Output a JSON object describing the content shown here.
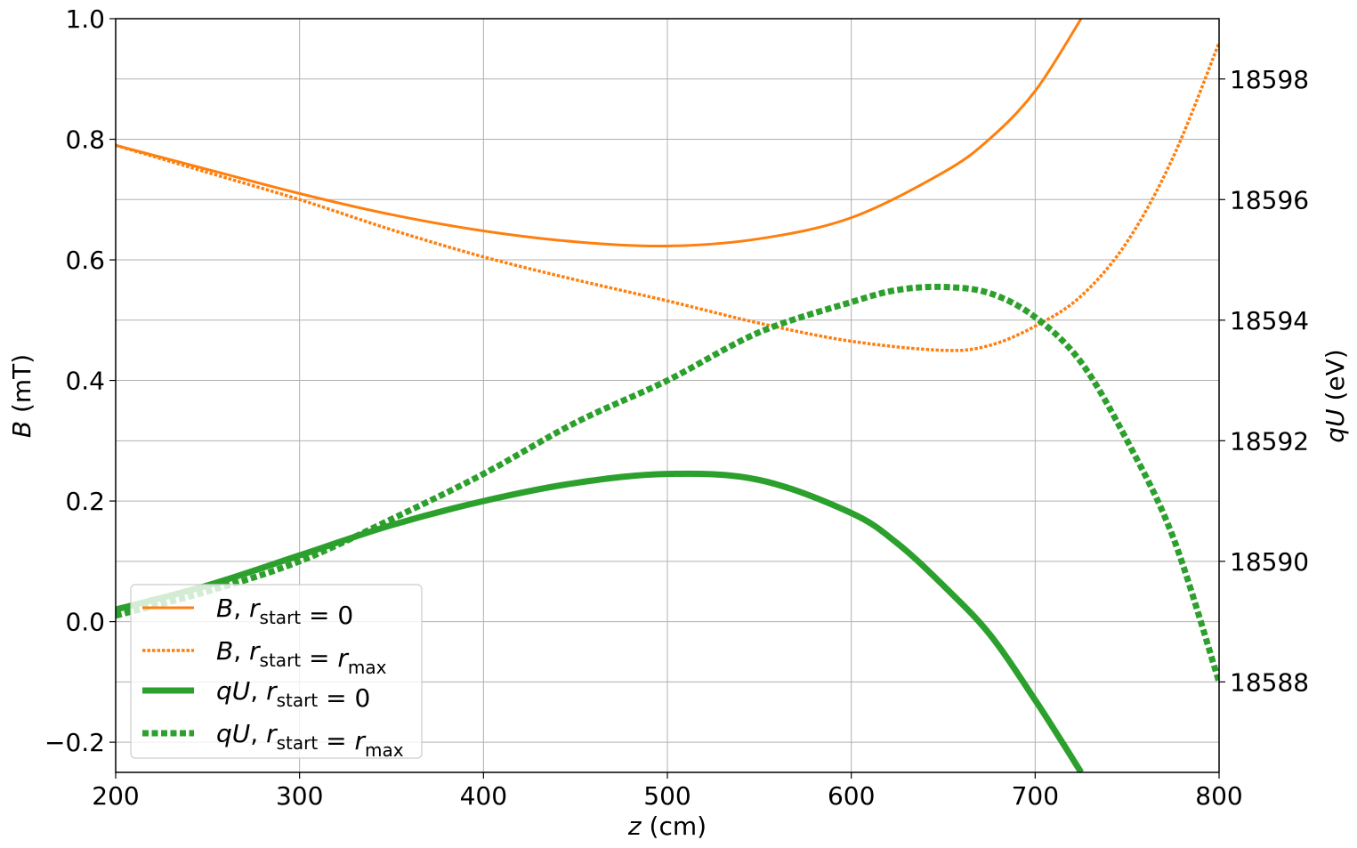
{
  "chart_data": {
    "type": "line",
    "xlabel": {
      "var": "z",
      "unit": "(cm)"
    },
    "ylabel_left": {
      "var": "B",
      "unit": "(mT)"
    },
    "ylabel_right": {
      "var": "qU",
      "unit": "(eV)"
    },
    "xlim": [
      200,
      800
    ],
    "ylim_left": [
      -0.25,
      1.0
    ],
    "ylim_right": [
      18586.5,
      18599.0
    ],
    "xticks": [
      "200",
      "300",
      "400",
      "500",
      "600",
      "700",
      "800"
    ],
    "yticks_left": [
      "−0.2",
      "0.0",
      "0.2",
      "0.4",
      "0.6",
      "0.8",
      "1.0"
    ],
    "yticks_right": [
      "18588",
      "18590",
      "18592",
      "18594",
      "18596",
      "18598"
    ],
    "grid": true,
    "legend_position": "lower-left",
    "colors": {
      "orange": "#ff7f0e",
      "green": "#2ca02c"
    },
    "series": [
      {
        "legend": {
          "var": "B",
          "sub": "start",
          "rhs": "0",
          "rhs_sub": ""
        },
        "axis": "left",
        "color": "#ff7f0e",
        "style": "solid",
        "width": 3,
        "x": [
          200,
          250,
          300,
          350,
          400,
          450,
          500,
          550,
          600,
          650,
          675,
          700,
          725
        ],
        "y": [
          0.79,
          0.75,
          0.71,
          0.675,
          0.648,
          0.63,
          0.623,
          0.635,
          0.67,
          0.745,
          0.8,
          0.88,
          1.0
        ]
      },
      {
        "legend": {
          "var": "B",
          "sub": "start",
          "rhs": "r",
          "rhs_sub": "max"
        },
        "axis": "left",
        "color": "#ff7f0e",
        "style": "dotted",
        "width": 3.5,
        "x": [
          200,
          250,
          300,
          350,
          400,
          450,
          500,
          550,
          600,
          650,
          675,
          700,
          725,
          750,
          775,
          800
        ],
        "y": [
          0.79,
          0.745,
          0.7,
          0.65,
          0.605,
          0.567,
          0.532,
          0.495,
          0.465,
          0.45,
          0.458,
          0.49,
          0.54,
          0.63,
          0.77,
          0.96
        ]
      },
      {
        "legend": {
          "var": "qU",
          "sub": "start",
          "rhs": "0",
          "rhs_sub": ""
        },
        "axis": "right",
        "color": "#2ca02c",
        "style": "solid",
        "width": 7,
        "x": [
          200,
          250,
          300,
          350,
          400,
          450,
          500,
          550,
          600,
          625,
          650,
          675,
          700,
          725
        ],
        "y": [
          18589.2,
          18589.6,
          18590.1,
          18590.6,
          18591.0,
          18591.3,
          18591.45,
          18591.35,
          18590.8,
          18590.3,
          18589.6,
          18588.8,
          18587.7,
          18586.5
        ]
      },
      {
        "legend": {
          "var": "qU",
          "sub": "start",
          "rhs": "r",
          "rhs_sub": "max"
        },
        "axis": "right",
        "color": "#2ca02c",
        "style": "dotted",
        "width": 7,
        "x": [
          200,
          250,
          300,
          350,
          400,
          450,
          500,
          550,
          600,
          625,
          650,
          675,
          700,
          725,
          750,
          775,
          800
        ],
        "y": [
          18589.1,
          18589.5,
          18590.0,
          18590.7,
          18591.45,
          18592.3,
          18593.0,
          18593.8,
          18594.3,
          18594.5,
          18594.55,
          18594.45,
          18594.05,
          18593.3,
          18592.0,
          18590.4,
          18588.0
        ]
      }
    ]
  }
}
